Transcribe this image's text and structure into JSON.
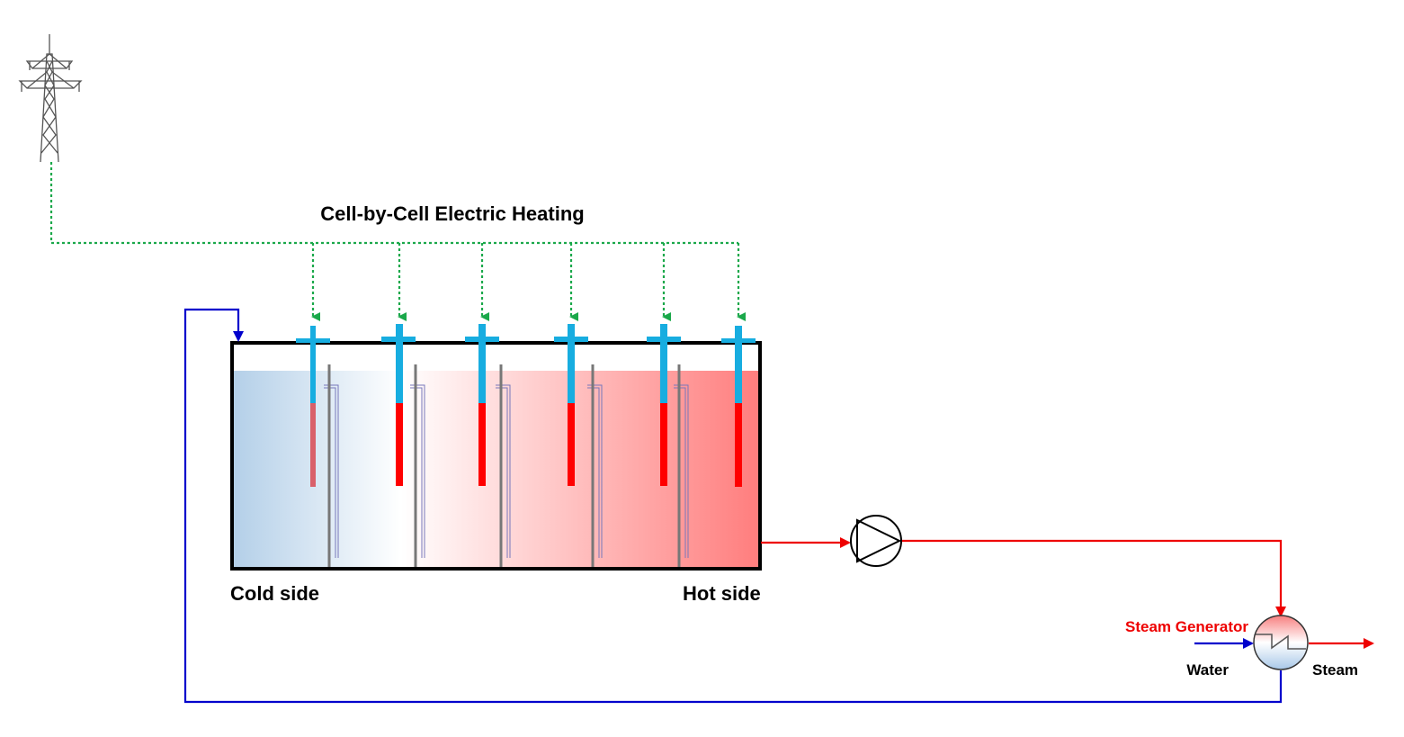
{
  "title": "Cell-by-Cell Electric Heating",
  "labels": {
    "cold_side": "Cold side",
    "hot_side": "Hot side",
    "steam_generator": "Steam Generator",
    "water": "Water",
    "steam": "Steam"
  }
}
